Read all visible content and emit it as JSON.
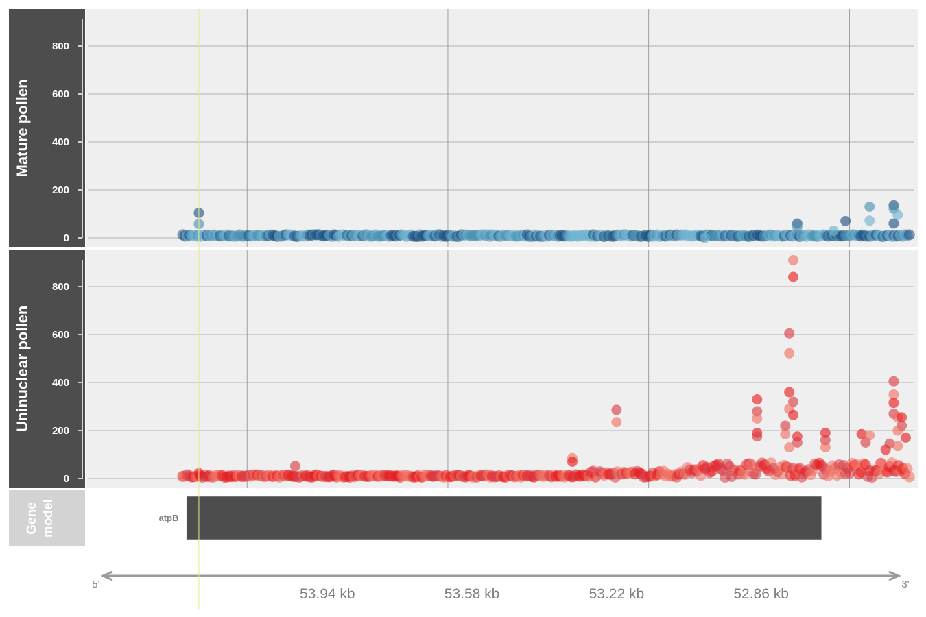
{
  "chart_data": {
    "type": "scatter",
    "tracks": [
      {
        "name": "Mature pollen",
        "ylim": [
          0,
          950
        ],
        "yticks": [
          "0",
          "200",
          "400",
          "600",
          "800"
        ],
        "colors": [
          "#1f4e7f",
          "#4a90b0",
          "#6fb3cf"
        ],
        "points": [
          [
            54.26,
            104
          ],
          [
            54.26,
            58
          ],
          [
            53.0,
            0
          ],
          [
            52.77,
            60
          ],
          [
            52.77,
            46
          ],
          [
            52.68,
            30
          ],
          [
            52.65,
            70
          ],
          [
            52.59,
            130
          ],
          [
            52.59,
            72
          ],
          [
            52.53,
            136
          ],
          [
            52.53,
            122
          ],
          [
            52.52,
            96
          ],
          [
            52.53,
            60
          ]
        ],
        "baseline_start": 54.3,
        "baseline_end": 52.49
      },
      {
        "name": "Uninuclear pollen",
        "ylim": [
          0,
          950
        ],
        "yticks": [
          "0",
          "200",
          "400",
          "600",
          "800"
        ],
        "colors": [
          "#e8191c",
          "#d83a44",
          "#f07060"
        ],
        "points": [
          [
            54.26,
            22
          ],
          [
            54.02,
            52
          ],
          [
            53.33,
            85
          ],
          [
            53.33,
            70
          ],
          [
            53.22,
            286
          ],
          [
            53.22,
            235
          ],
          [
            52.87,
            330
          ],
          [
            52.87,
            280
          ],
          [
            52.87,
            250
          ],
          [
            52.87,
            190
          ],
          [
            52.87,
            175
          ],
          [
            52.78,
            910
          ],
          [
            52.78,
            840
          ],
          [
            52.79,
            605
          ],
          [
            52.79,
            522
          ],
          [
            52.79,
            360
          ],
          [
            52.78,
            320
          ],
          [
            52.79,
            290
          ],
          [
            52.78,
            265
          ],
          [
            52.8,
            220
          ],
          [
            52.8,
            185
          ],
          [
            52.77,
            175
          ],
          [
            52.77,
            150
          ],
          [
            52.79,
            130
          ],
          [
            52.7,
            190
          ],
          [
            52.7,
            160
          ],
          [
            52.7,
            130
          ],
          [
            52.61,
            185
          ],
          [
            52.6,
            150
          ],
          [
            52.59,
            180
          ],
          [
            52.55,
            120
          ],
          [
            52.53,
            405
          ],
          [
            52.53,
            350
          ],
          [
            52.53,
            315
          ],
          [
            52.53,
            270
          ],
          [
            52.52,
            255
          ],
          [
            52.51,
            255
          ],
          [
            52.51,
            220
          ],
          [
            52.52,
            200
          ],
          [
            52.5,
            170
          ],
          [
            52.54,
            145
          ],
          [
            52.52,
            135
          ]
        ],
        "baseline_start": 54.3,
        "baseline_end": 52.49
      }
    ],
    "gene_model": {
      "title": [
        "Gene",
        "model"
      ],
      "genes": [
        {
          "name": "atpB",
          "start": 54.29,
          "end": 52.71
        }
      ]
    },
    "x_axis": {
      "tick_labels": [
        "53.94 kb",
        "53.58 kb",
        "53.22 kb",
        "52.86 kb"
      ],
      "tick_values": [
        53.94,
        53.58,
        53.22,
        52.86
      ],
      "grid_values": [
        54.14,
        53.64,
        53.14,
        52.64
      ],
      "xlim": [
        54.54,
        52.47
      ],
      "strand_left": "5'",
      "strand_right": "3'"
    },
    "highlight_x": 54.26,
    "grid": true
  }
}
